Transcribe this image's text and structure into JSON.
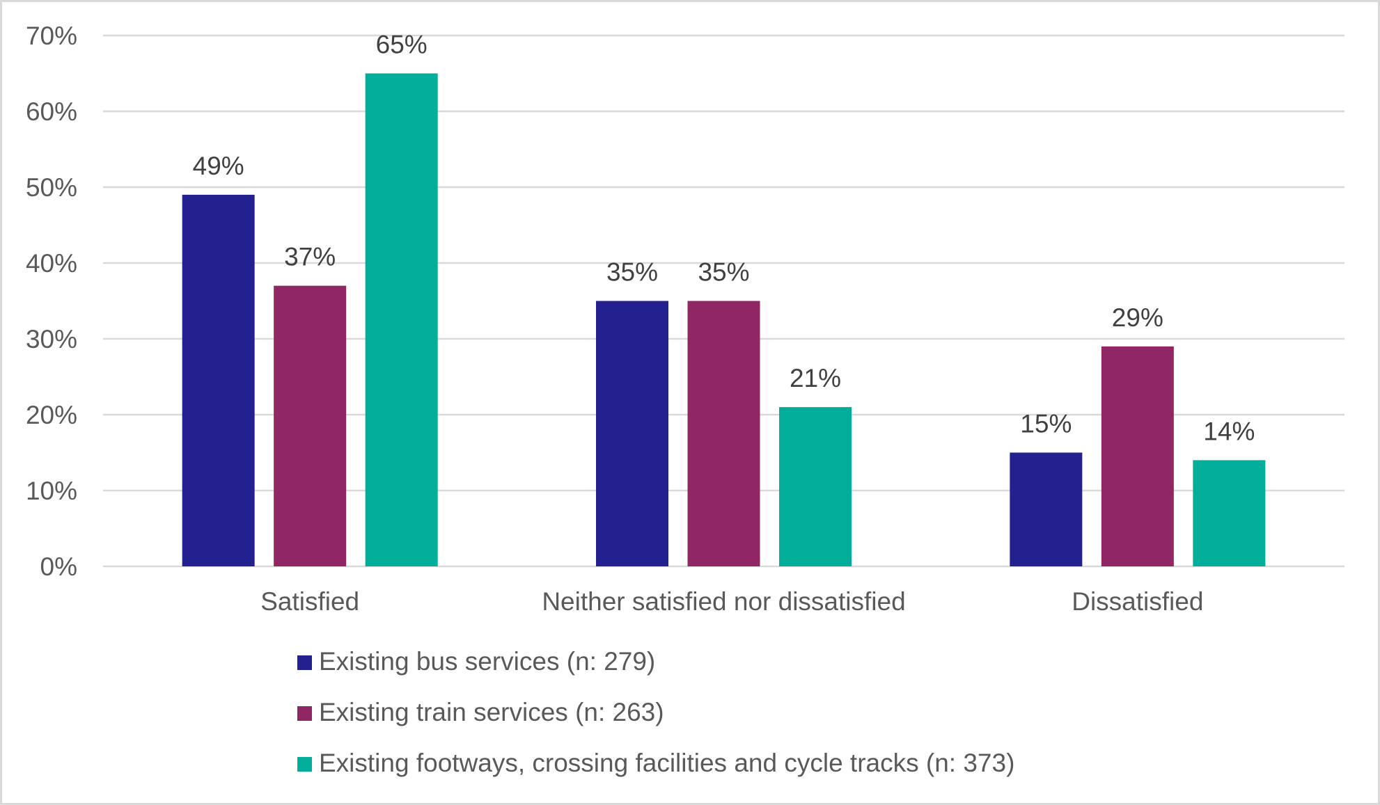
{
  "chart_data": {
    "type": "bar",
    "title": "",
    "xlabel": "",
    "ylabel": "",
    "categories": [
      "Satisfied",
      "Neither satisfied nor dissatisfied",
      "Dissatisfied"
    ],
    "series": [
      {
        "name": "Existing bus services (n: 279)",
        "color": "#22218f",
        "values": [
          49,
          35,
          15
        ],
        "labels": [
          "49%",
          "35%",
          "15%"
        ]
      },
      {
        "name": "Existing train services (n: 263)",
        "color": "#902664",
        "values": [
          37,
          35,
          29
        ],
        "labels": [
          "37%",
          "35%",
          "29%"
        ]
      },
      {
        "name": "Existing footways, crossing facilities and cycle tracks (n: 373)",
        "color": "#02ae9a",
        "values": [
          65,
          21,
          14
        ],
        "labels": [
          "65%",
          "21%",
          "14%"
        ]
      }
    ],
    "ylim": [
      0,
      70
    ],
    "yticks": [
      0,
      10,
      20,
      30,
      40,
      50,
      60,
      70
    ],
    "ytick_labels": [
      "0%",
      "10%",
      "20%",
      "30%",
      "40%",
      "50%",
      "60%",
      "70%"
    ],
    "grid": true,
    "legend_position": "bottom"
  }
}
